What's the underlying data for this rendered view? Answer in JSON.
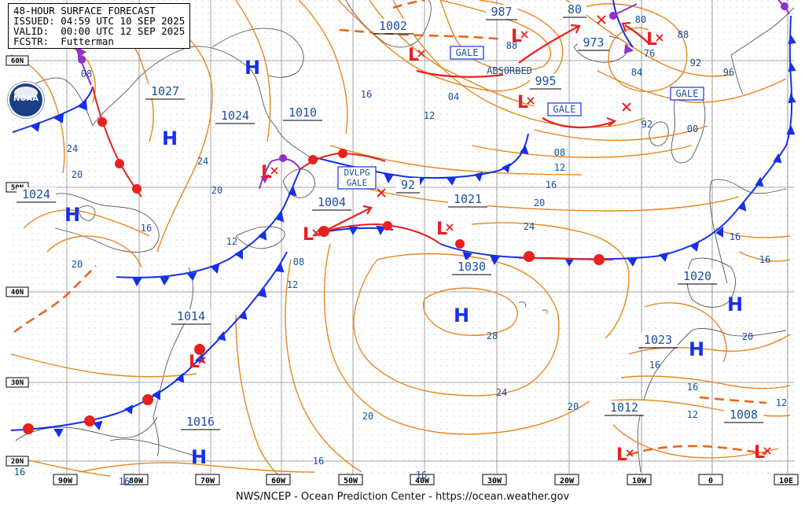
{
  "header": {
    "line1": "48-HOUR SURFACE FORECAST",
    "line2": "ISSUED: 04:59 UTC 10 SEP 2025",
    "line3": "VALID:  00:00 UTC 12 SEP 2025",
    "line4": "FCSTR:  Futterman"
  },
  "footer": "NWS/NCEP - Ocean Prediction Center - https://ocean.weather.gov",
  "logo_text": "NOAA",
  "lat_labels": [
    "60N",
    "50N",
    "40N",
    "30N",
    "20N"
  ],
  "lon_labels": [
    "90W",
    "80W",
    "70W",
    "60W",
    "50W",
    "40W",
    "30W",
    "20W",
    "10W",
    "0",
    "10E"
  ],
  "pressure_boxes": [
    "1002",
    "987",
    "80",
    "973",
    "995",
    "1027",
    "1024",
    "1010",
    "1024",
    "1004",
    "92",
    "1021",
    "1030",
    "1020",
    "1014",
    "1023",
    "1012",
    "1008",
    "1016"
  ],
  "isobar_labels": [
    "08",
    "88",
    "84",
    "76",
    "80",
    "88",
    "92",
    "96",
    "16",
    "04",
    "12",
    "00",
    "08",
    "92",
    "12",
    "16",
    "20",
    "24",
    "24",
    "20",
    "20",
    "16",
    "12",
    "08",
    "20",
    "24",
    "28",
    "24",
    "20",
    "16",
    "16",
    "20",
    "16",
    "12",
    "12",
    "16",
    "16",
    "12",
    "20",
    "16"
  ],
  "tags": {
    "gale1": "GALE",
    "gale2": "GALE",
    "gale3": "GALE",
    "absorbed": "ABSORBED",
    "dvlpg1": "DVLPG",
    "dvlpg2": "GALE"
  },
  "highs": [
    "H",
    "H",
    "H",
    "H",
    "H",
    "H",
    "H"
  ],
  "lows": [
    "L",
    "L",
    "L",
    "L",
    "L",
    "L",
    "L",
    "L",
    "L",
    "L"
  ],
  "colors": {
    "isobar": "#e8861c",
    "cold_front": "#1530e8",
    "warm_front": "#e82020",
    "occluded": "#9030d0",
    "high": "#1530e8",
    "low": "#e82020",
    "coast": "#555555",
    "grid": "#888888",
    "label_text": "#1a4fa0"
  }
}
